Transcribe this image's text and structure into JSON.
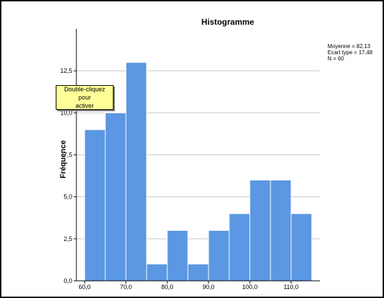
{
  "chart_data": {
    "type": "bar",
    "title": "Histogramme",
    "xlabel": "",
    "ylabel": "Fréquence",
    "bins": [
      {
        "x0": 60.0,
        "x1": 65.0,
        "count": 9
      },
      {
        "x0": 65.0,
        "x1": 70.0,
        "count": 10
      },
      {
        "x0": 70.0,
        "x1": 75.0,
        "count": 13
      },
      {
        "x0": 75.0,
        "x1": 80.0,
        "count": 1
      },
      {
        "x0": 80.0,
        "x1": 85.0,
        "count": 3
      },
      {
        "x0": 85.0,
        "x1": 90.0,
        "count": 1
      },
      {
        "x0": 90.0,
        "x1": 95.0,
        "count": 3
      },
      {
        "x0": 95.0,
        "x1": 100.0,
        "count": 4
      },
      {
        "x0": 100.0,
        "x1": 105.0,
        "count": 6
      },
      {
        "x0": 105.0,
        "x1": 110.0,
        "count": 6
      },
      {
        "x0": 110.0,
        "x1": 115.0,
        "count": 4
      }
    ],
    "xlim": [
      58.0,
      117.0
    ],
    "ylim": [
      0,
      15
    ],
    "xticks": [
      "60,0",
      "70,0",
      "80,0",
      "90,0",
      "100,0",
      "110,0"
    ],
    "yticks": [
      "0,0",
      "2,5",
      "5,0",
      "7,5",
      "10,0",
      "12,5"
    ],
    "grid": "horizontal",
    "bar_color": "#5b97e2",
    "stats": {
      "mean": "Moyenne = 82,13",
      "std": "Ecart type = 17,48",
      "n": "N = 60"
    }
  },
  "tooltip": {
    "line1": "Double-cliquez pour",
    "line2": "activer"
  }
}
